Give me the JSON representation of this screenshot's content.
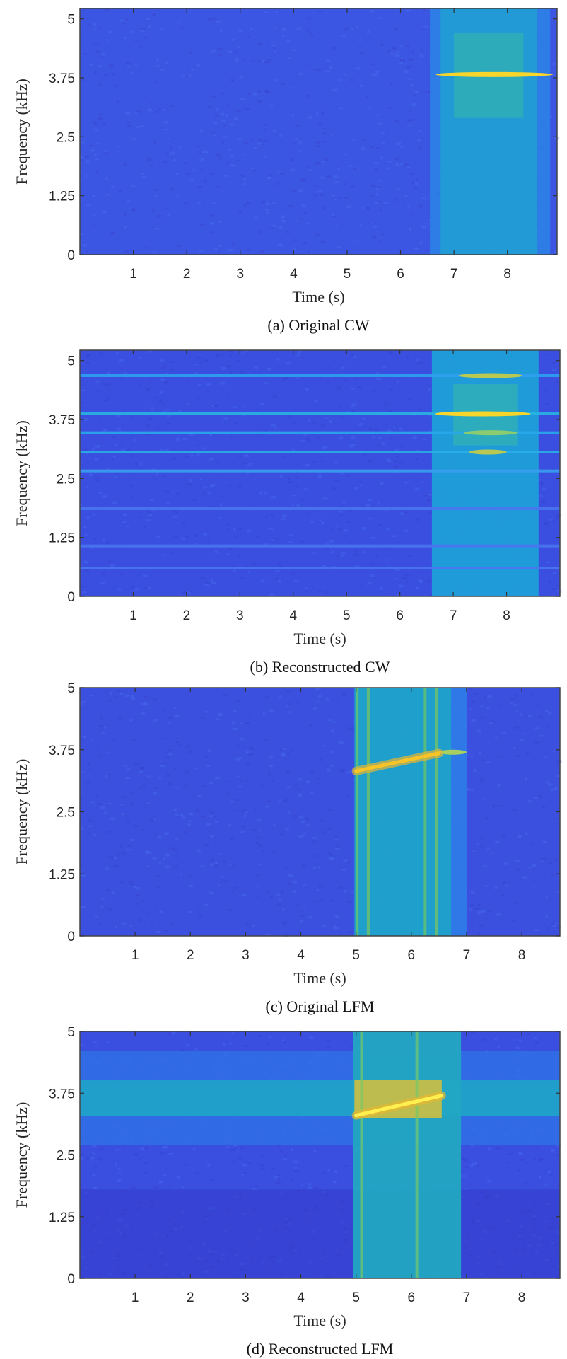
{
  "chart_data": [
    {
      "type": "heatmap",
      "caption": "(a) Original CW",
      "xlabel": "Time (s)",
      "ylabel": "Frequency (kHz)",
      "xlim": [
        0,
        8.93
      ],
      "ylim": [
        0,
        5.22
      ],
      "xticks": [
        1,
        2,
        3,
        4,
        5,
        6,
        7,
        8
      ],
      "xtick_labels": [
        "1",
        "2",
        "3",
        "4",
        "5",
        "6",
        "7",
        "8"
      ],
      "yticks": [
        0,
        1.25,
        2.5,
        3.75,
        5
      ],
      "ytick_labels": [
        "0",
        "1.25",
        "2.5",
        "3.75",
        "5"
      ],
      "background": "#3c56e4",
      "hbands": [],
      "regions": [
        {
          "t": [
            6.55,
            8.8
          ],
          "f": [
            0,
            5.22
          ],
          "color": "#2a86e6",
          "opacity": 0.8
        },
        {
          "t": [
            6.75,
            8.55
          ],
          "f": [
            0,
            5.22
          ],
          "color": "#1ca6cf",
          "opacity": 0.7
        },
        {
          "t": [
            7.0,
            8.3
          ],
          "f": [
            2.9,
            4.7
          ],
          "color": "#3cc198",
          "opacity": 0.45
        }
      ],
      "vlines": [],
      "tones": [
        {
          "t": [
            6.65,
            8.85
          ],
          "f": 3.82,
          "color": "#f7d52a"
        }
      ],
      "chirps": []
    },
    {
      "type": "heatmap",
      "caption": "(b) Reconstructed CW",
      "xlabel": "Time (s)",
      "ylabel": "Frequency (kHz)",
      "xlim": [
        0,
        9.0
      ],
      "ylim": [
        0,
        5.22
      ],
      "xticks": [
        1,
        2,
        3,
        4,
        5,
        6,
        7,
        8
      ],
      "xtick_labels": [
        "1",
        "2",
        "3",
        "4",
        "5",
        "6",
        "7",
        "8"
      ],
      "yticks": [
        0,
        1.25,
        2.5,
        3.75,
        5
      ],
      "ytick_labels": [
        "0",
        "1.25",
        "2.5",
        "3.75",
        "5"
      ],
      "background": "#3a4fe0",
      "hbands": [
        {
          "f": 4.68,
          "color": "#2ea0f0"
        },
        {
          "f": 3.87,
          "color": "#28b4e0"
        },
        {
          "f": 3.47,
          "color": "#28a8e8"
        },
        {
          "f": 3.06,
          "color": "#28b0e4"
        },
        {
          "f": 2.66,
          "color": "#3a9ef0"
        },
        {
          "f": 1.86,
          "color": "#4a74f0"
        },
        {
          "f": 1.07,
          "color": "#4a74f0"
        },
        {
          "f": 0.6,
          "color": "#4a74f0"
        }
      ],
      "regions": [
        {
          "t": [
            6.6,
            8.6
          ],
          "f": [
            0,
            5.22
          ],
          "color": "#1f9fd8",
          "opacity": 0.95
        },
        {
          "t": [
            7.0,
            8.2
          ],
          "f": [
            3.2,
            4.5
          ],
          "color": "#3cc198",
          "opacity": 0.45
        }
      ],
      "vlines": [],
      "tones": [
        {
          "t": [
            6.65,
            8.45
          ],
          "f": 3.87,
          "color": "#f7d52a"
        },
        {
          "t": [
            7.1,
            8.3
          ],
          "f": 4.68,
          "color": "#b8c850"
        },
        {
          "t": [
            7.3,
            8.0
          ],
          "f": 3.06,
          "color": "#b8c850"
        },
        {
          "t": [
            7.2,
            8.2
          ],
          "f": 3.47,
          "color": "#8ccc70"
        }
      ],
      "chirps": []
    },
    {
      "type": "heatmap",
      "caption": "(c) Original LFM",
      "xlabel": "Time (s)",
      "ylabel": "Frequency (kHz)",
      "xlim": [
        0,
        8.69
      ],
      "ylim": [
        0,
        5
      ],
      "xticks": [
        1,
        2,
        3,
        4,
        5,
        6,
        7,
        8
      ],
      "xtick_labels": [
        "1",
        "2",
        "3",
        "4",
        "5",
        "6",
        "7",
        "8"
      ],
      "yticks": [
        0,
        1.25,
        2.5,
        3.75,
        5
      ],
      "ytick_labels": [
        "0",
        "1.25",
        "2.5",
        "3.75",
        "5"
      ],
      "background": "#3b50de",
      "hbands": [],
      "regions": [
        {
          "t": [
            6.7,
            7.0
          ],
          "f": [
            0,
            5
          ],
          "color": "#2f7ce8",
          "opacity": 0.9
        },
        {
          "t": [
            4.97,
            6.72
          ],
          "f": [
            0,
            5
          ],
          "color": "#1ea3c9",
          "opacity": 0.95
        }
      ],
      "vlines": [
        {
          "t": 5.02,
          "color": "#70c860"
        },
        {
          "t": 5.22,
          "color": "#80c858"
        },
        {
          "t": 6.25,
          "color": "#70c860"
        },
        {
          "t": 6.45,
          "color": "#80c858"
        }
      ],
      "tones": [
        {
          "t": [
            6.5,
            7.0
          ],
          "f": 3.7,
          "color": "#a8d060"
        }
      ],
      "chirps": [
        {
          "t": [
            5.0,
            6.5
          ],
          "f": [
            3.32,
            3.68
          ],
          "color": "#f8c428"
        }
      ]
    },
    {
      "type": "heatmap",
      "caption": "(d) Reconstructed LFM",
      "xlabel": "Time (s)",
      "ylabel": "Frequency (kHz)",
      "xlim": [
        0,
        8.69
      ],
      "ylim": [
        0,
        5
      ],
      "xticks": [
        1,
        2,
        3,
        4,
        5,
        6,
        7,
        8
      ],
      "xtick_labels": [
        "1",
        "2",
        "3",
        "4",
        "5",
        "6",
        "7",
        "8"
      ],
      "yticks": [
        0,
        1.25,
        2.5,
        3.75,
        5
      ],
      "ytick_labels": [
        "0",
        "1.25",
        "2.5",
        "3.75",
        "5"
      ],
      "background": "#3a4ee0",
      "hbands": [],
      "regions": [
        {
          "t": [
            0,
            8.69
          ],
          "f": [
            0,
            1.8
          ],
          "color": "#3438c6",
          "opacity": 0.45
        },
        {
          "t": [
            0,
            8.69
          ],
          "f": [
            2.7,
            4.6
          ],
          "color": "#2f72e6",
          "opacity": 0.8
        },
        {
          "t": [
            0,
            8.69
          ],
          "f": [
            3.28,
            4.01
          ],
          "color": "#1fa2c8",
          "opacity": 0.95
        },
        {
          "t": [
            4.95,
            6.9
          ],
          "f": [
            0,
            5
          ],
          "color": "#22a6c2",
          "opacity": 0.95
        },
        {
          "t": [
            4.97,
            6.55
          ],
          "f": [
            3.25,
            4.02
          ],
          "color": "#d8bf3a",
          "opacity": 0.85
        }
      ],
      "vlines": [
        {
          "t": 5.1,
          "color": "#78c868"
        },
        {
          "t": 6.1,
          "color": "#78c868"
        }
      ],
      "tones": [],
      "chirps": [
        {
          "t": [
            5.0,
            6.55
          ],
          "f": [
            3.3,
            3.7
          ],
          "color": "#fff050"
        }
      ]
    }
  ]
}
